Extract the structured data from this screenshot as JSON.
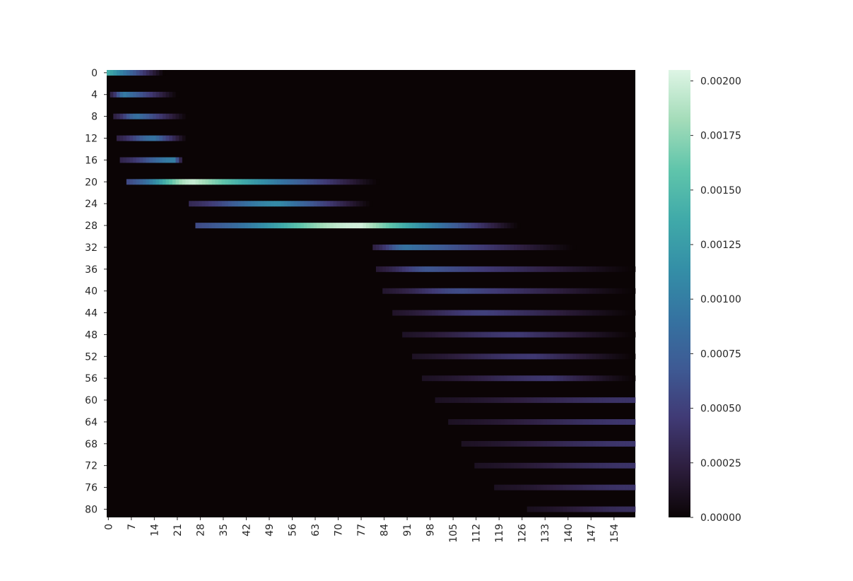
{
  "chart_data": {
    "type": "heatmap",
    "title": "",
    "xlabel": "",
    "ylabel": "",
    "n_rows": 82,
    "n_cols": 161,
    "y_tick_labels": [
      "0",
      "4",
      "8",
      "12",
      "16",
      "20",
      "24",
      "28",
      "32",
      "36",
      "40",
      "44",
      "48",
      "52",
      "56",
      "60",
      "64",
      "68",
      "72",
      "76",
      "80"
    ],
    "x_tick_labels": [
      "0",
      "7",
      "14",
      "21",
      "28",
      "35",
      "42",
      "49",
      "56",
      "63",
      "70",
      "77",
      "84",
      "91",
      "98",
      "105",
      "112",
      "119",
      "126",
      "133",
      "140",
      "147",
      "154"
    ],
    "colorbar": {
      "range": [
        0,
        0.00205
      ],
      "tick_values": [
        0,
        0.00025,
        0.0005,
        0.00075,
        0.001,
        0.00125,
        0.0015,
        0.00175,
        0.002
      ],
      "tick_labels": [
        "0.00000",
        "0.00025",
        "0.00050",
        "0.00075",
        "0.00100",
        "0.00125",
        "0.00150",
        "0.00175",
        "0.00200"
      ]
    },
    "colormap": [
      "#0b0405",
      "#2d1e3e",
      "#403a75",
      "#3e5a94",
      "#3573a1",
      "#348fa7",
      "#40aaa9",
      "#60c5ab",
      "#a4dcb9",
      "#def5e5"
    ],
    "background_value": 0,
    "bands": [
      {
        "row": 0,
        "col_start": 0,
        "col_end": 17,
        "peak_col": 0,
        "peak_value": 0.0014
      },
      {
        "row": 4,
        "col_start": 1,
        "col_end": 21,
        "peak_col": 5,
        "peak_value": 0.00098
      },
      {
        "row": 8,
        "col_start": 2,
        "col_end": 24,
        "peak_col": 9,
        "peak_value": 0.00088
      },
      {
        "row": 12,
        "col_start": 3,
        "col_end": 24,
        "peak_col": 14,
        "peak_value": 0.0009
      },
      {
        "row": 16,
        "col_start": 4,
        "col_end": 23,
        "peak_col": 20,
        "peak_value": 0.001
      },
      {
        "row": 20,
        "col_start": 6,
        "col_end": 82,
        "peak_col": 26,
        "peak_value": 0.00195
      },
      {
        "row": 24,
        "col_start": 25,
        "col_end": 80,
        "peak_col": 52,
        "peak_value": 0.0011
      },
      {
        "row": 28,
        "col_start": 27,
        "col_end": 125,
        "peak_col": 77,
        "peak_value": 0.002
      },
      {
        "row": 32,
        "col_start": 81,
        "col_end": 142,
        "peak_col": 91,
        "peak_value": 0.0009
      },
      {
        "row": 36,
        "col_start": 82,
        "col_end": 160,
        "peak_col": 98,
        "peak_value": 0.00065
      },
      {
        "row": 40,
        "col_start": 84,
        "col_end": 160,
        "peak_col": 108,
        "peak_value": 0.00058
      },
      {
        "row": 44,
        "col_start": 87,
        "col_end": 160,
        "peak_col": 115,
        "peak_value": 0.0005
      },
      {
        "row": 48,
        "col_start": 90,
        "col_end": 160,
        "peak_col": 125,
        "peak_value": 0.00045
      },
      {
        "row": 52,
        "col_start": 93,
        "col_end": 160,
        "peak_col": 130,
        "peak_value": 0.00044
      },
      {
        "row": 56,
        "col_start": 96,
        "col_end": 160,
        "peak_col": 135,
        "peak_value": 0.00042
      },
      {
        "row": 60,
        "col_start": 100,
        "col_end": 160,
        "peak_col": 160,
        "peak_value": 0.0004
      },
      {
        "row": 64,
        "col_start": 104,
        "col_end": 160,
        "peak_col": 160,
        "peak_value": 0.00042
      },
      {
        "row": 68,
        "col_start": 108,
        "col_end": 160,
        "peak_col": 160,
        "peak_value": 0.00042
      },
      {
        "row": 72,
        "col_start": 112,
        "col_end": 160,
        "peak_col": 160,
        "peak_value": 0.0004
      },
      {
        "row": 76,
        "col_start": 118,
        "col_end": 160,
        "peak_col": 160,
        "peak_value": 0.0004
      },
      {
        "row": 80,
        "col_start": 128,
        "col_end": 160,
        "peak_col": 160,
        "peak_value": 0.00035
      }
    ]
  }
}
